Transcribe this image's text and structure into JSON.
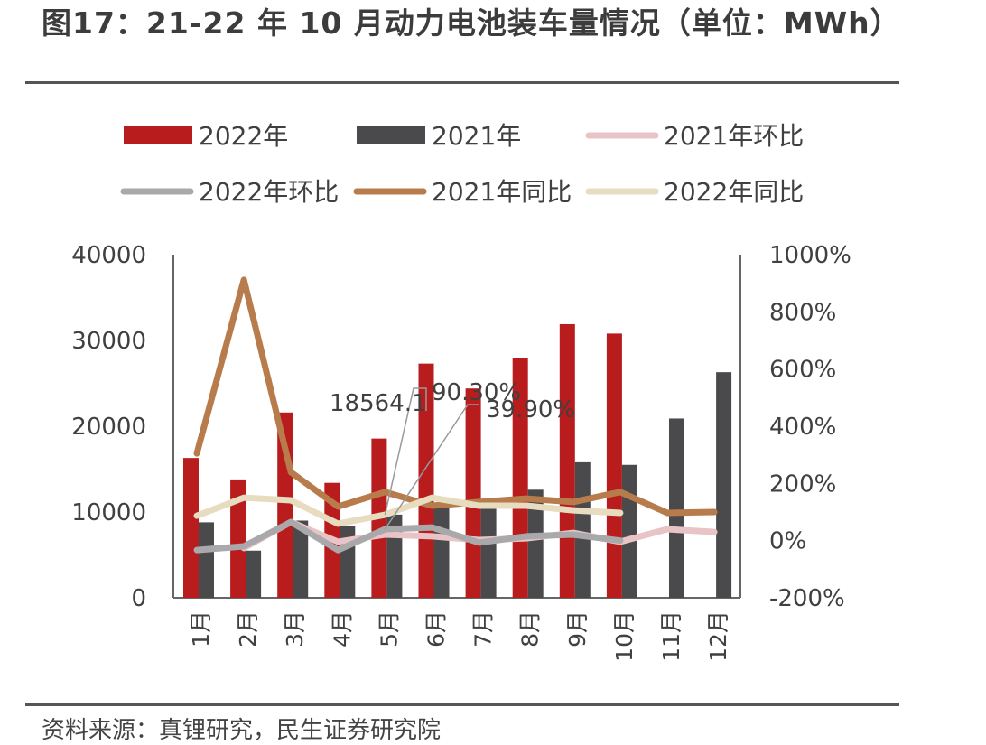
{
  "title": "图17：21-22 年 10 月动力电池装车量情况（单位：MWh）",
  "source": "资料来源：真锂研究，民生证券研究院",
  "colors": {
    "bar2022": "#b91c1c",
    "bar2021": "#4a4a4c",
    "mom2021": "#e8c4c6",
    "mom2022": "#a9a9ab",
    "yoy2021": "#b87c4c",
    "yoy2022": "#e8dcc0"
  },
  "chart_data": {
    "type": "bar+line",
    "categories": [
      "1月",
      "2月",
      "3月",
      "4月",
      "5月",
      "6月",
      "7月",
      "8月",
      "9月",
      "10月",
      "11月",
      "12月"
    ],
    "left_axis": {
      "range": [
        0,
        40000
      ],
      "ticks": [
        "0",
        "10000",
        "20000",
        "30000",
        "40000"
      ]
    },
    "right_axis": {
      "range": [
        -200,
        1000
      ],
      "ticks": [
        "-200%",
        "0%",
        "200%",
        "400%",
        "600%",
        "800%",
        "1000%"
      ]
    },
    "legend_position": "top",
    "bars": [
      {
        "name": "2022年",
        "values": [
          16300,
          13800,
          21600,
          13400,
          18564.1,
          27300,
          24400,
          28000,
          31900,
          30800,
          null,
          null
        ]
      },
      {
        "name": "2021年",
        "values": [
          8800,
          5500,
          9000,
          8400,
          9700,
          11100,
          11300,
          12600,
          15800,
          15500,
          20900,
          26300
        ]
      }
    ],
    "lines": [
      {
        "name": "2021年环比",
        "axis": "right",
        "values": [
          null,
          -26,
          65,
          -4,
          21,
          15,
          2,
          8,
          27,
          -4,
          40,
          30
        ]
      },
      {
        "name": "2022年环比",
        "axis": "right",
        "values": [
          -33,
          -20,
          65,
          -33,
          39.9,
          46,
          -7,
          15,
          21,
          0,
          null,
          null
        ]
      },
      {
        "name": "2021年同比",
        "axis": "right",
        "values": [
          305,
          912,
          239,
          119,
          170,
          122,
          135,
          147,
          135,
          170,
          97,
          100
        ]
      },
      {
        "name": "2022年同比",
        "axis": "right",
        "values": [
          87,
          150,
          141,
          59,
          90.3,
          150,
          122,
          122,
          106,
          97,
          null,
          null
        ]
      }
    ],
    "annotations": [
      "18564.1",
      "90.30%",
      "39.90%"
    ]
  }
}
